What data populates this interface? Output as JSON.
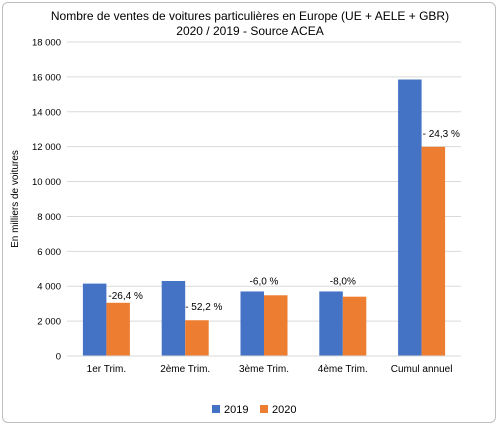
{
  "chart_data": {
    "type": "bar",
    "title": "Nombre de ventes de voitures particulières en Europe (UE + AELE + GBR)",
    "subtitle": "2020 / 2019 - Source ACEA",
    "ylabel": "En milliers de voitures",
    "xlabel": "",
    "ylim": [
      0,
      18000
    ],
    "yticks": [
      0,
      2000,
      4000,
      6000,
      8000,
      10000,
      12000,
      14000,
      16000,
      18000
    ],
    "ytick_labels": [
      "0",
      "2 000",
      "4 000",
      "6 000",
      "8 000",
      "10 000",
      "12 000",
      "14 000",
      "16 000",
      "18 000"
    ],
    "categories": [
      "1er Trim.",
      "2ème Trim.",
      "3ème Trim.",
      "4ème Trim.",
      "Cumul annuel"
    ],
    "series": [
      {
        "name": "2019",
        "color": "#4472C4",
        "values": [
          4150,
          4300,
          3700,
          3700,
          15850
        ]
      },
      {
        "name": "2020",
        "color": "#ED7D31",
        "values": [
          3050,
          2050,
          3480,
          3400,
          11990
        ]
      }
    ],
    "annotations": [
      "-26,4 %",
      "- 52,2 %",
      "-6,0 %",
      "-8,0%",
      "- 24,3 %"
    ],
    "grid": true,
    "legend_position": "bottom"
  }
}
